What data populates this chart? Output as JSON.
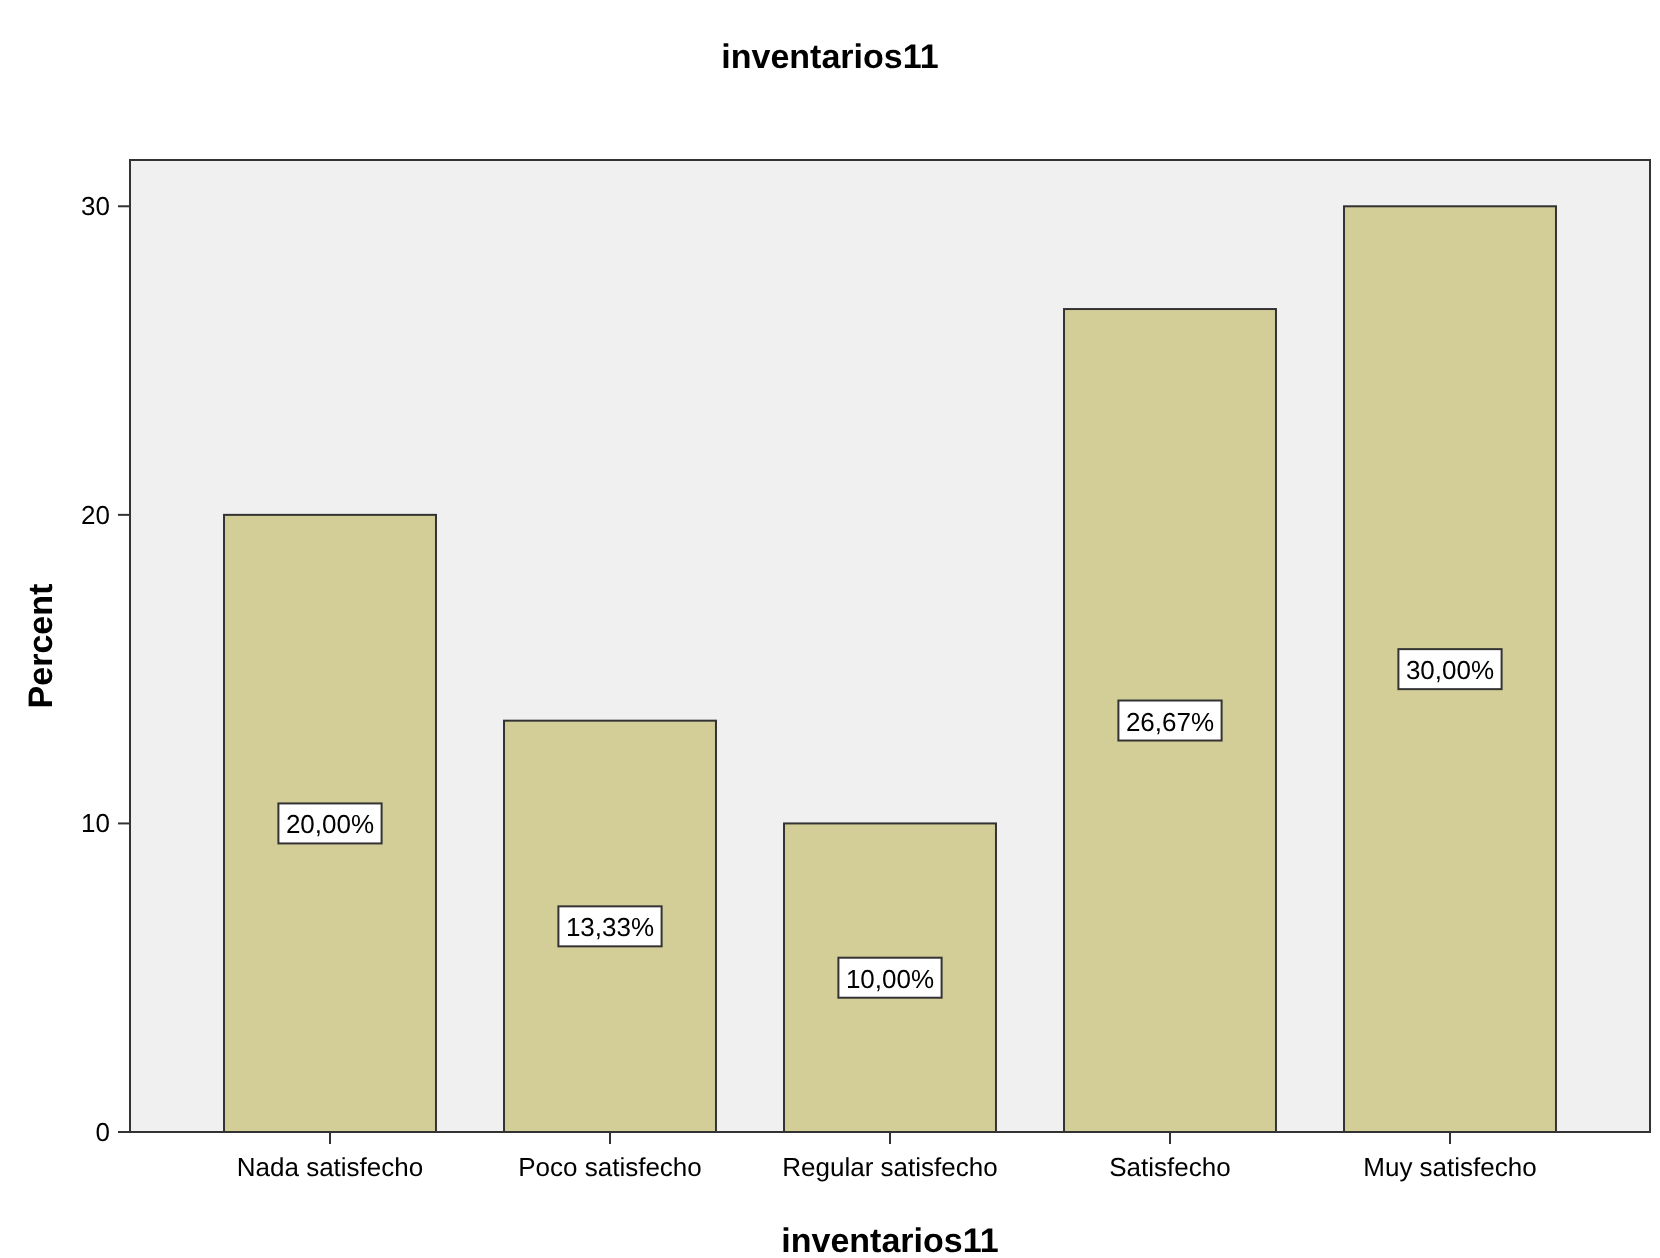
{
  "chart_data": {
    "type": "bar",
    "title": "inventarios11",
    "xlabel": "inventarios11",
    "ylabel": "Percent",
    "categories": [
      "Nada satisfecho",
      "Poco satisfecho",
      "Regular satisfecho",
      "Satisfecho",
      "Muy satisfecho"
    ],
    "values": [
      20.0,
      13.33,
      10.0,
      26.67,
      30.0
    ],
    "value_labels": [
      "20,00%",
      "13,33%",
      "10,00%",
      "26,67%",
      "30,00%"
    ],
    "color": "#d3ce98",
    "ylim": [
      0,
      31.5
    ],
    "yticks": [
      0,
      10,
      20,
      30
    ],
    "grid": false
  }
}
